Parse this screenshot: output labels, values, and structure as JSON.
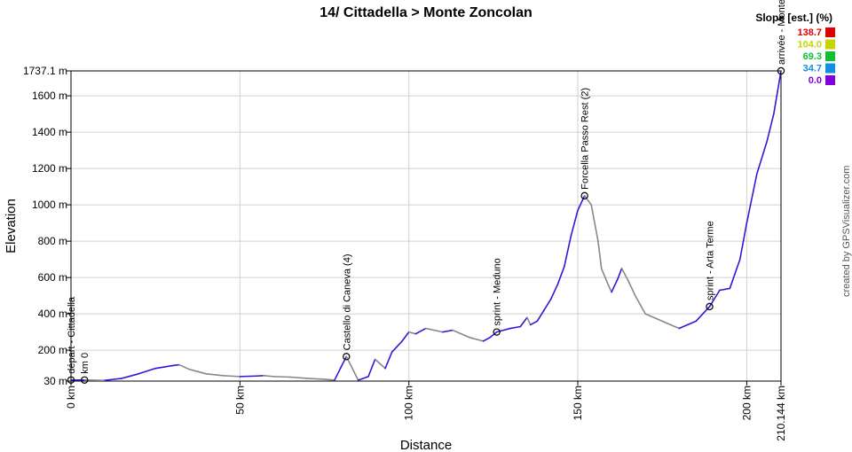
{
  "chart_data": {
    "type": "line",
    "title": "14/ Cittadella > Monte Zoncolan",
    "xlabel": "Distance",
    "ylabel": "Elevation",
    "xlim": [
      0,
      210.144
    ],
    "ylim": [
      30,
      1737.1
    ],
    "x_ticks": [
      {
        "value": 0,
        "label": "0 km"
      },
      {
        "value": 50,
        "label": "50 km"
      },
      {
        "value": 100,
        "label": "100 km"
      },
      {
        "value": 150,
        "label": "150 km"
      },
      {
        "value": 200,
        "label": "200 km"
      },
      {
        "value": 210.144,
        "label": "210.144 km"
      }
    ],
    "y_ticks": [
      {
        "value": 30,
        "label": "30 m"
      },
      {
        "value": 200,
        "label": "200 m"
      },
      {
        "value": 400,
        "label": "400 m"
      },
      {
        "value": 600,
        "label": "600 m"
      },
      {
        "value": 800,
        "label": "800 m"
      },
      {
        "value": 1000,
        "label": "1000 m"
      },
      {
        "value": 1200,
        "label": "1200 m"
      },
      {
        "value": 1400,
        "label": "1400 m"
      },
      {
        "value": 1600,
        "label": "1600 m"
      },
      {
        "value": 1737.1,
        "label": "1737.1 m"
      }
    ],
    "grid": true,
    "profile": {
      "x": [
        0,
        4,
        10,
        15,
        20,
        25,
        30,
        32,
        35,
        40,
        45,
        50,
        55,
        57,
        60,
        65,
        70,
        75,
        78,
        80,
        81.5,
        83,
        85,
        88,
        90,
        93,
        95,
        98,
        100,
        102,
        105,
        110,
        113,
        118,
        122,
        124,
        126,
        130,
        133,
        135,
        136,
        138,
        140,
        142,
        144,
        146,
        148,
        150,
        152,
        154,
        156,
        157,
        159,
        160,
        162,
        163,
        165,
        167,
        170,
        175,
        180,
        185,
        189,
        192,
        195,
        198,
        200,
        203,
        206,
        208,
        210.144
      ],
      "y": [
        36,
        36,
        34,
        45,
        70,
        100,
        115,
        120,
        95,
        70,
        60,
        55,
        58,
        60,
        55,
        52,
        45,
        40,
        35,
        110,
        165,
        110,
        35,
        55,
        150,
        100,
        190,
        250,
        300,
        290,
        320,
        300,
        310,
        270,
        250,
        270,
        300,
        320,
        330,
        380,
        340,
        360,
        420,
        480,
        560,
        660,
        830,
        970,
        1050,
        1000,
        800,
        650,
        560,
        520,
        600,
        650,
        580,
        500,
        400,
        360,
        320,
        360,
        440,
        530,
        540,
        700,
        900,
        1170,
        1350,
        1500,
        1737.1
      ]
    },
    "waypoints": [
      {
        "x": 0,
        "y": 36,
        "label": "départ - Cittadella"
      },
      {
        "x": 4,
        "y": 36,
        "label": "km 0"
      },
      {
        "x": 81.5,
        "y": 165,
        "label": "Castello di Caneva (4)"
      },
      {
        "x": 126,
        "y": 300,
        "label": "sprint - Meduno"
      },
      {
        "x": 152,
        "y": 1050,
        "label": "Forcella Passo Rest (2)"
      },
      {
        "x": 189,
        "y": 440,
        "label": "sprint - Arta Terme"
      },
      {
        "x": 210.144,
        "y": 1737.1,
        "label": "arrivée - Monte Zoncolan"
      }
    ],
    "legend": {
      "title": "Slope [est.] (%)",
      "placement": "top-right",
      "entries": [
        {
          "label": "138.7",
          "color": "#e00000"
        },
        {
          "label": "104.0",
          "color": "#c8d400"
        },
        {
          "label": "69.3",
          "color": "#10c030"
        },
        {
          "label": "34.7",
          "color": "#1090e0"
        },
        {
          "label": "0.0",
          "color": "#8000e0"
        }
      ]
    },
    "line_colors": {
      "climb": "#2c1ad8",
      "descent": "#888888"
    }
  },
  "credit": "created by GPSVisualizer.com"
}
